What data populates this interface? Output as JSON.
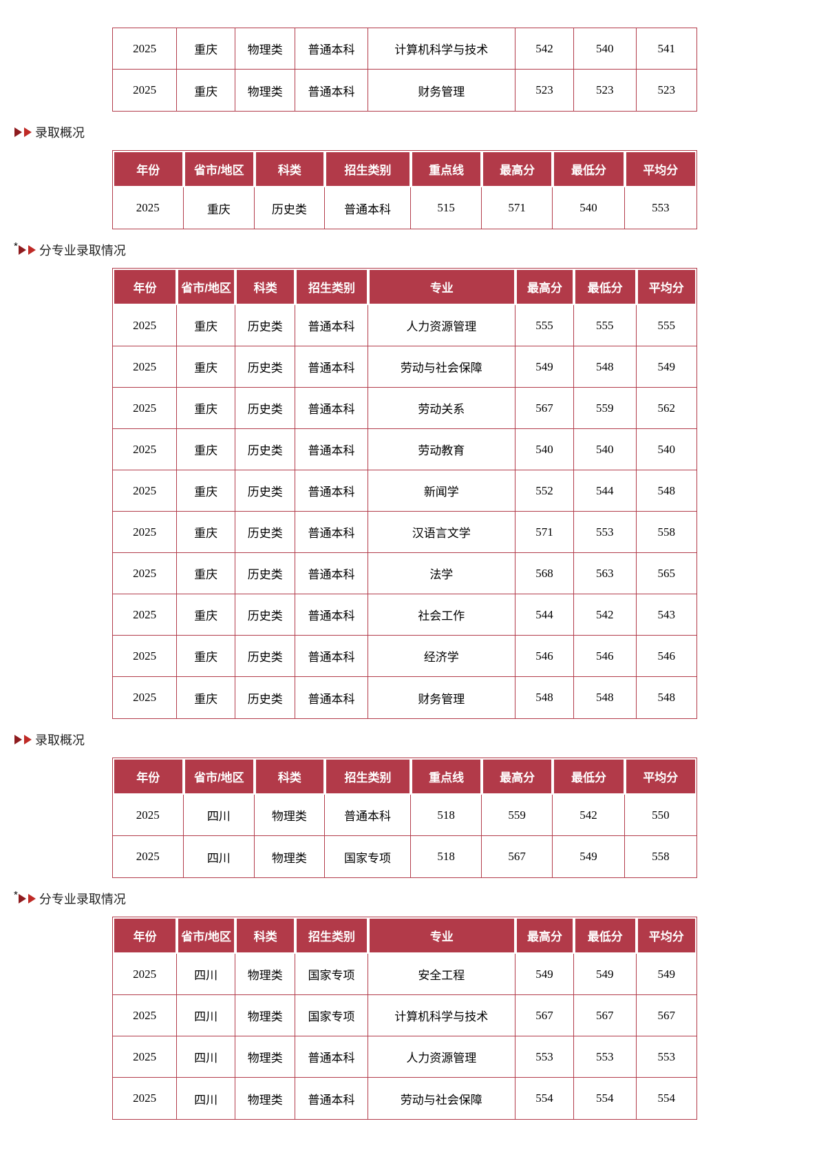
{
  "colors": {
    "header_bg": "#B23A49",
    "table_border": "#B23A49",
    "header_text": "#FFFFFF",
    "cell_text": "#000000",
    "heading_text": "#222222",
    "arrow_dark": "#8E1B1E",
    "arrow_bright": "#BF2A26"
  },
  "top_table_fragment": {
    "kind": "major",
    "rows": [
      [
        "2025",
        "重庆",
        "物理类",
        "普通本科",
        "计算机科学与技术",
        "542",
        "540",
        "541"
      ],
      [
        "2025",
        "重庆",
        "物理类",
        "普通本科",
        "财务管理",
        "523",
        "523",
        "523"
      ]
    ]
  },
  "sections": [
    {
      "heading": {
        "prefix": "",
        "label": "录取概况"
      },
      "table": {
        "kind": "overview",
        "headers": [
          "年份",
          "省市/地区",
          "科类",
          "招生类别",
          "重点线",
          "最高分",
          "最低分",
          "平均分"
        ],
        "rows": [
          [
            "2025",
            "重庆",
            "历史类",
            "普通本科",
            "515",
            "571",
            "540",
            "553"
          ]
        ]
      }
    },
    {
      "heading": {
        "prefix": "*",
        "label": "分专业录取情况"
      },
      "table": {
        "kind": "major",
        "headers": [
          "年份",
          "省市/地区",
          "科类",
          "招生类别",
          "专业",
          "最高分",
          "最低分",
          "平均分"
        ],
        "rows": [
          [
            "2025",
            "重庆",
            "历史类",
            "普通本科",
            "人力资源管理",
            "555",
            "555",
            "555"
          ],
          [
            "2025",
            "重庆",
            "历史类",
            "普通本科",
            "劳动与社会保障",
            "549",
            "548",
            "549"
          ],
          [
            "2025",
            "重庆",
            "历史类",
            "普通本科",
            "劳动关系",
            "567",
            "559",
            "562"
          ],
          [
            "2025",
            "重庆",
            "历史类",
            "普通本科",
            "劳动教育",
            "540",
            "540",
            "540"
          ],
          [
            "2025",
            "重庆",
            "历史类",
            "普通本科",
            "新闻学",
            "552",
            "544",
            "548"
          ],
          [
            "2025",
            "重庆",
            "历史类",
            "普通本科",
            "汉语言文学",
            "571",
            "553",
            "558"
          ],
          [
            "2025",
            "重庆",
            "历史类",
            "普通本科",
            "法学",
            "568",
            "563",
            "565"
          ],
          [
            "2025",
            "重庆",
            "历史类",
            "普通本科",
            "社会工作",
            "544",
            "542",
            "543"
          ],
          [
            "2025",
            "重庆",
            "历史类",
            "普通本科",
            "经济学",
            "546",
            "546",
            "546"
          ],
          [
            "2025",
            "重庆",
            "历史类",
            "普通本科",
            "财务管理",
            "548",
            "548",
            "548"
          ]
        ]
      }
    },
    {
      "heading": {
        "prefix": "",
        "label": "录取概况"
      },
      "table": {
        "kind": "overview",
        "headers": [
          "年份",
          "省市/地区",
          "科类",
          "招生类别",
          "重点线",
          "最高分",
          "最低分",
          "平均分"
        ],
        "rows": [
          [
            "2025",
            "四川",
            "物理类",
            "普通本科",
            "518",
            "559",
            "542",
            "550"
          ],
          [
            "2025",
            "四川",
            "物理类",
            "国家专项",
            "518",
            "567",
            "549",
            "558"
          ]
        ]
      }
    },
    {
      "heading": {
        "prefix": "*",
        "label": "分专业录取情况"
      },
      "table": {
        "kind": "major",
        "headers": [
          "年份",
          "省市/地区",
          "科类",
          "招生类别",
          "专业",
          "最高分",
          "最低分",
          "平均分"
        ],
        "rows": [
          [
            "2025",
            "四川",
            "物理类",
            "国家专项",
            "安全工程",
            "549",
            "549",
            "549"
          ],
          [
            "2025",
            "四川",
            "物理类",
            "国家专项",
            "计算机科学与技术",
            "567",
            "567",
            "567"
          ],
          [
            "2025",
            "四川",
            "物理类",
            "普通本科",
            "人力资源管理",
            "553",
            "553",
            "553"
          ],
          [
            "2025",
            "四川",
            "物理类",
            "普通本科",
            "劳动与社会保障",
            "554",
            "554",
            "554"
          ]
        ]
      }
    }
  ]
}
